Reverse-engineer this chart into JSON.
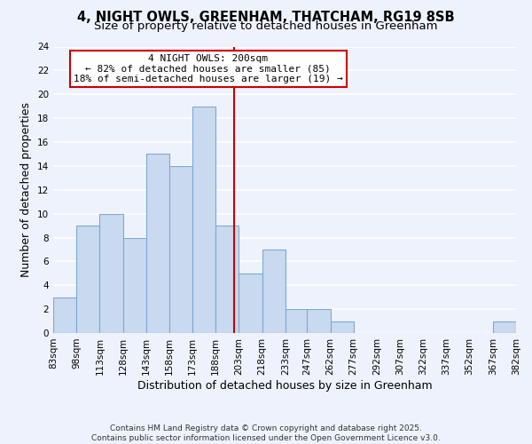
{
  "title_line1": "4, NIGHT OWLS, GREENHAM, THATCHAM, RG19 8SB",
  "title_line2": "Size of property relative to detached houses in Greenham",
  "xlabel": "Distribution of detached houses by size in Greenham",
  "ylabel": "Number of detached properties",
  "bin_edges": [
    83,
    98,
    113,
    128,
    143,
    158,
    173,
    188,
    203,
    218,
    233,
    247,
    262,
    277,
    292,
    307,
    322,
    337,
    352,
    367,
    382
  ],
  "counts": [
    3,
    9,
    10,
    8,
    15,
    14,
    19,
    9,
    5,
    7,
    2,
    2,
    1,
    0,
    0,
    0,
    0,
    0,
    0,
    1
  ],
  "bar_facecolor": "#c8d9f0",
  "bar_edgecolor": "#7aaad4",
  "vline_x": 200,
  "vline_color": "#cc0000",
  "annotation_title": "4 NIGHT OWLS: 200sqm",
  "annotation_line1": "← 82% of detached houses are smaller (85)",
  "annotation_line2": "18% of semi-detached houses are larger (19) →",
  "annotation_box_edgecolor": "#cc0000",
  "annotation_box_facecolor": "#ffffff",
  "ylim": [
    0,
    24
  ],
  "yticks": [
    0,
    2,
    4,
    6,
    8,
    10,
    12,
    14,
    16,
    18,
    20,
    22,
    24
  ],
  "tick_labels": [
    "83sqm",
    "98sqm",
    "113sqm",
    "128sqm",
    "143sqm",
    "158sqm",
    "173sqm",
    "188sqm",
    "203sqm",
    "218sqm",
    "233sqm",
    "247sqm",
    "262sqm",
    "277sqm",
    "292sqm",
    "307sqm",
    "322sqm",
    "337sqm",
    "352sqm",
    "367sqm",
    "382sqm"
  ],
  "background_color": "#eef2fc",
  "grid_color": "#ffffff",
  "footer_line1": "Contains HM Land Registry data © Crown copyright and database right 2025.",
  "footer_line2": "Contains public sector information licensed under the Open Government Licence v3.0.",
  "title_fontsize": 10.5,
  "subtitle_fontsize": 9.5,
  "axis_label_fontsize": 9,
  "tick_fontsize": 7.5,
  "footer_fontsize": 6.5,
  "annot_fontsize": 8
}
